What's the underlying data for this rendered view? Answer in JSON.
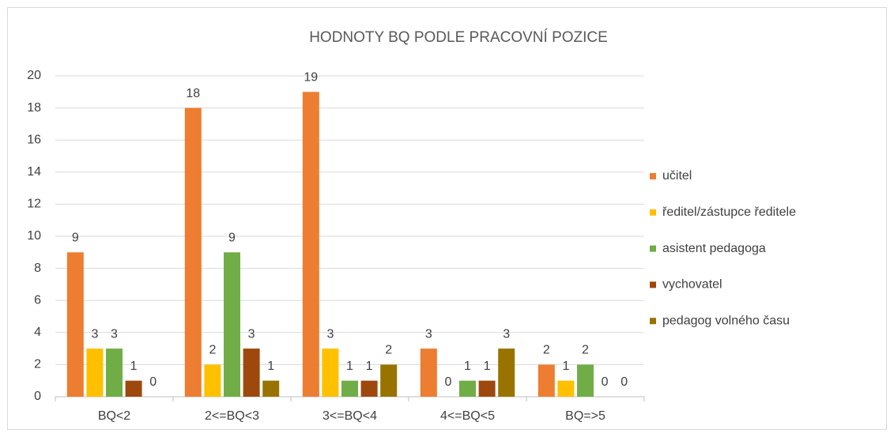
{
  "chart_data": {
    "type": "bar",
    "title": "HODNOTY BQ PODLE PRACOVNÍ POZICE",
    "categories": [
      "BQ<2",
      "2<=BQ<3",
      "3<=BQ<4",
      "4<=BQ<5",
      "BQ=>5"
    ],
    "series": [
      {
        "name": "učitel",
        "color": "#ed7d31",
        "values": [
          9,
          18,
          19,
          3,
          2
        ]
      },
      {
        "name": "ředitel/zástupce ředitele",
        "color": "#ffc000",
        "values": [
          3,
          2,
          3,
          0,
          1
        ]
      },
      {
        "name": "asistent pedagoga",
        "color": "#70ad47",
        "values": [
          3,
          9,
          1,
          1,
          2
        ]
      },
      {
        "name": "vychovatel",
        "color": "#9e480e",
        "values": [
          1,
          3,
          1,
          1,
          0
        ]
      },
      {
        "name": "pedagog volného času",
        "color": "#997300",
        "values": [
          0,
          1,
          2,
          3,
          0
        ]
      }
    ],
    "ylim": [
      0,
      20
    ],
    "yticks": [
      0,
      2,
      4,
      6,
      8,
      10,
      12,
      14,
      16,
      18,
      20
    ],
    "grid": true,
    "legend": "right"
  }
}
